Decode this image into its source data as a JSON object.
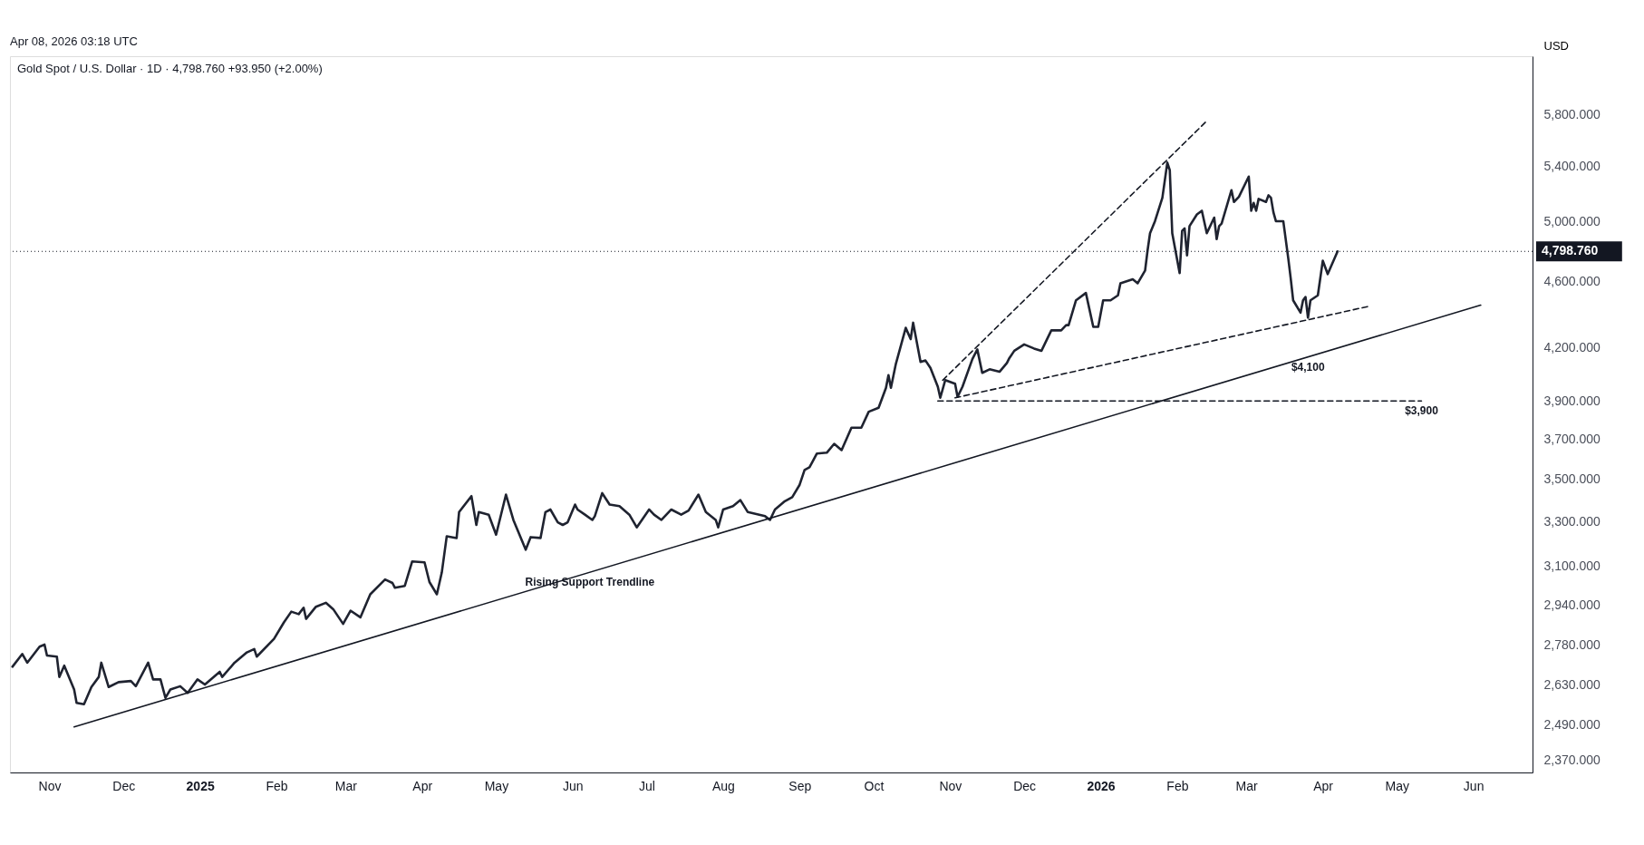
{
  "chart_data": {
    "type": "line",
    "title": "Gold Spot / U.S. Dollar · 1D · 4,798.760 +93.950 (+2.00%)",
    "ylabel": "USD",
    "annotations": [
      "Apr 08, 2026 03:18 UTC",
      {
        "text": "Rising Support Trendline",
        "x": "2025-06-08",
        "y": 3075
      },
      {
        "text": "$4,100",
        "x": "2026-03-26",
        "y": 4145
      },
      {
        "text": "$3,900",
        "x": "2026-05-11",
        "y": 3900
      }
    ],
    "log": true,
    "grid": false,
    "xlim": [
      "2024-10-16",
      "2026-06-25"
    ],
    "ylim": [
      2330,
      6290
    ],
    "xticks": [
      {
        "value": "2024-11-01",
        "label": "Nov"
      },
      {
        "value": "2024-12-01",
        "label": "Dec"
      },
      {
        "value": "2025-01-01",
        "label": "2025"
      },
      {
        "value": "2025-02-01",
        "label": "Feb"
      },
      {
        "value": "2025-03-01",
        "label": "Mar"
      },
      {
        "value": "2025-04-01",
        "label": "Apr"
      },
      {
        "value": "2025-05-01",
        "label": "May"
      },
      {
        "value": "2025-06-01",
        "label": "Jun"
      },
      {
        "value": "2025-07-01",
        "label": "Jul"
      },
      {
        "value": "2025-08-01",
        "label": "Aug"
      },
      {
        "value": "2025-09-01",
        "label": "Sep"
      },
      {
        "value": "2025-10-01",
        "label": "Oct"
      },
      {
        "value": "2025-11-01",
        "label": "Nov"
      },
      {
        "value": "2025-12-01",
        "label": "Dec"
      },
      {
        "value": "2026-01-01",
        "label": "2026"
      },
      {
        "value": "2026-02-01",
        "label": "Feb"
      },
      {
        "value": "2026-03-01",
        "label": "Mar"
      },
      {
        "value": "2026-04-01",
        "label": "Apr"
      },
      {
        "value": "2026-05-01",
        "label": "May"
      },
      {
        "value": "2026-06-01",
        "label": "Jun"
      }
    ],
    "yticks": [
      {
        "value": 2370,
        "label": "2,370.000"
      },
      {
        "value": 2490,
        "label": "2,490.000"
      },
      {
        "value": 2630,
        "label": "2,630.000"
      },
      {
        "value": 2780,
        "label": "2,780.000"
      },
      {
        "value": 2940,
        "label": "2,940.000"
      },
      {
        "value": 3100,
        "label": "3,100.000"
      },
      {
        "value": 3300,
        "label": "3,300.000"
      },
      {
        "value": 3500,
        "label": "3,500.000"
      },
      {
        "value": 3700,
        "label": "3,700.000"
      },
      {
        "value": 3900,
        "label": "3,900.000"
      },
      {
        "value": 4200,
        "label": "4,200.000"
      },
      {
        "value": 4600,
        "label": "4,600.000"
      },
      {
        "value": 5000,
        "label": "5,000.000"
      },
      {
        "value": 5400,
        "label": "5,400.000"
      },
      {
        "value": 5800,
        "label": "5,800.000"
      }
    ],
    "ref_lines": [
      {
        "axis": "y",
        "value": 4798.76,
        "label": "4,798.760",
        "color": "#131722",
        "line_style": "dotted"
      }
    ],
    "series": [
      {
        "color": "#1f2330",
        "line_style": "solid",
        "x": [
          "2024-10-17",
          "2024-10-21",
          "2024-10-23",
          "2024-10-28",
          "2024-10-30",
          "2024-10-31",
          "2024-11-04",
          "2024-11-05",
          "2024-11-07",
          "2024-11-11",
          "2024-11-12",
          "2024-11-15",
          "2024-11-18",
          "2024-11-21",
          "2024-11-22",
          "2024-11-25",
          "2024-11-29",
          "2024-12-04",
          "2024-12-06",
          "2024-12-11",
          "2024-12-13",
          "2024-12-16",
          "2024-12-18",
          "2024-12-20",
          "2024-12-24",
          "2024-12-27",
          "2024-12-31",
          "2025-01-03",
          "2025-01-09",
          "2025-01-10",
          "2025-01-15",
          "2025-01-20",
          "2025-01-23",
          "2025-01-24",
          "2025-01-31",
          "2025-02-04",
          "2025-02-07",
          "2025-02-10",
          "2025-02-12",
          "2025-02-13",
          "2025-02-17",
          "2025-02-21",
          "2025-02-24",
          "2025-02-28",
          "2025-03-03",
          "2025-03-07",
          "2025-03-11",
          "2025-03-17",
          "2025-03-20",
          "2025-03-21",
          "2025-03-25",
          "2025-03-28",
          "2025-04-02",
          "2025-04-04",
          "2025-04-07",
          "2025-04-09",
          "2025-04-11",
          "2025-04-15",
          "2025-04-16",
          "2025-04-21",
          "2025-04-23",
          "2025-04-24",
          "2025-04-28",
          "2025-05-01",
          "2025-05-05",
          "2025-05-08",
          "2025-05-13",
          "2025-05-15",
          "2025-05-19",
          "2025-05-21",
          "2025-05-23",
          "2025-05-26",
          "2025-05-28",
          "2025-05-30",
          "2025-06-02",
          "2025-06-03",
          "2025-06-06",
          "2025-06-09",
          "2025-06-10",
          "2025-06-13",
          "2025-06-16",
          "2025-06-20",
          "2025-06-24",
          "2025-06-27",
          "2025-07-02",
          "2025-07-04",
          "2025-07-07",
          "2025-07-11",
          "2025-07-15",
          "2025-07-18",
          "2025-07-22",
          "2025-07-25",
          "2025-07-29",
          "2025-07-30",
          "2025-08-01",
          "2025-08-05",
          "2025-08-08",
          "2025-08-11",
          "2025-08-18",
          "2025-08-20",
          "2025-08-22",
          "2025-08-26",
          "2025-08-29",
          "2025-09-01",
          "2025-09-03",
          "2025-09-05",
          "2025-09-08",
          "2025-09-12",
          "2025-09-15",
          "2025-09-18",
          "2025-09-22",
          "2025-09-26",
          "2025-09-29",
          "2025-10-03",
          "2025-10-06",
          "2025-10-07",
          "2025-10-08",
          "2025-10-10",
          "2025-10-14",
          "2025-10-16",
          "2025-10-17",
          "2025-10-20",
          "2025-10-22",
          "2025-10-24",
          "2025-10-27",
          "2025-10-28",
          "2025-10-30",
          "2025-11-03",
          "2025-11-04",
          "2025-11-06",
          "2025-11-10",
          "2025-11-12",
          "2025-11-14",
          "2025-11-17",
          "2025-11-21",
          "2025-11-24",
          "2025-11-25",
          "2025-11-27",
          "2025-12-01",
          "2025-12-05",
          "2025-12-08",
          "2025-12-12",
          "2025-12-16",
          "2025-12-18",
          "2025-12-19",
          "2025-12-22",
          "2025-12-26",
          "2025-12-29",
          "2025-12-31",
          "2026-01-02",
          "2026-01-05",
          "2026-01-08",
          "2026-01-09",
          "2026-01-14",
          "2026-01-16",
          "2026-01-19",
          "2026-01-20",
          "2026-01-21",
          "2026-01-23",
          "2026-01-26",
          "2026-01-28",
          "2026-01-29",
          "2026-01-30",
          "2026-02-02",
          "2026-02-03",
          "2026-02-04",
          "2026-02-05",
          "2026-02-06",
          "2026-02-09",
          "2026-02-11",
          "2026-02-13",
          "2026-02-16",
          "2026-02-17",
          "2026-02-18",
          "2026-02-19",
          "2026-02-23",
          "2026-02-24",
          "2026-02-26",
          "2026-03-02",
          "2026-03-03",
          "2026-03-04",
          "2026-03-05",
          "2026-03-06",
          "2026-03-09",
          "2026-03-10",
          "2026-03-11",
          "2026-03-12",
          "2026-03-13",
          "2026-03-16",
          "2026-03-18",
          "2026-03-19",
          "2026-03-20",
          "2026-03-23",
          "2026-03-24",
          "2026-03-25",
          "2026-03-26",
          "2026-03-27",
          "2026-03-30",
          "2026-04-01",
          "2026-04-03",
          "2026-04-07"
        ],
        "values": [
          2698,
          2746,
          2713,
          2774,
          2782,
          2740,
          2736,
          2660,
          2702,
          2614,
          2566,
          2561,
          2623,
          2660,
          2713,
          2623,
          2641,
          2645,
          2626,
          2713,
          2651,
          2651,
          2584,
          2614,
          2626,
          2602,
          2651,
          2632,
          2679,
          2660,
          2713,
          2752,
          2765,
          2736,
          2804,
          2869,
          2912,
          2902,
          2928,
          2883,
          2932,
          2948,
          2922,
          2863,
          2916,
          2889,
          2983,
          3045,
          3030,
          3010,
          3018,
          3122,
          3118,
          3034,
          2983,
          3075,
          3233,
          3225,
          3343,
          3418,
          3284,
          3343,
          3331,
          3240,
          3425,
          3307,
          3173,
          3229,
          3225,
          3343,
          3355,
          3296,
          3284,
          3296,
          3378,
          3355,
          3331,
          3307,
          3324,
          3432,
          3378,
          3371,
          3331,
          3273,
          3355,
          3331,
          3307,
          3355,
          3331,
          3350,
          3425,
          3343,
          3307,
          3273,
          3355,
          3371,
          3399,
          3343,
          3324,
          3307,
          3355,
          3394,
          3413,
          3472,
          3544,
          3557,
          3626,
          3630,
          3675,
          3643,
          3758,
          3758,
          3842,
          3863,
          3972,
          4042,
          3972,
          4106,
          4316,
          4249,
          4347,
          4117,
          4125,
          4083,
          3978,
          3917,
          4014,
          3994,
          3922,
          3978,
          4133,
          4189,
          4055,
          4075,
          4061,
          4111,
          4139,
          4181,
          4218,
          4194,
          4181,
          4301,
          4301,
          4332,
          4332,
          4484,
          4530,
          4322,
          4322,
          4484,
          4484,
          4515,
          4591,
          4617,
          4591,
          4673,
          4805,
          4921,
          5004,
          5169,
          5427,
          5371,
          4921,
          4656,
          4937,
          4954,
          4772,
          4970,
          5051,
          5077,
          4921,
          5029,
          4881,
          4970,
          4987,
          5224,
          5139,
          5176,
          5323,
          5077,
          5132,
          5077,
          5161,
          5139,
          5187,
          5169,
          5066,
          5004,
          5004,
          4755,
          4623,
          4484,
          4408,
          4484,
          4505,
          4377,
          4484,
          4515,
          4737,
          4650,
          4798.76
        ]
      },
      {
        "type": "line",
        "color": "#131722",
        "line_style": "solid",
        "x": [
          "2024-11-11",
          "2026-06-04"
        ],
        "values": [
          2482,
          4454
        ]
      },
      {
        "type": "line",
        "color": "#131722",
        "line_style": "dashed",
        "x": [
          "2025-10-29",
          "2026-02-13"
        ],
        "values": [
          4014,
          5750
        ]
      },
      {
        "type": "line",
        "color": "#131722",
        "line_style": "dashed",
        "x": [
          "2025-11-03",
          "2026-04-20"
        ],
        "values": [
          3917,
          4448
        ]
      },
      {
        "type": "line",
        "color": "#131722",
        "line_style": "dashed",
        "x": [
          "2025-10-27",
          "2026-05-11"
        ],
        "values": [
          3900,
          3900
        ]
      }
    ]
  }
}
